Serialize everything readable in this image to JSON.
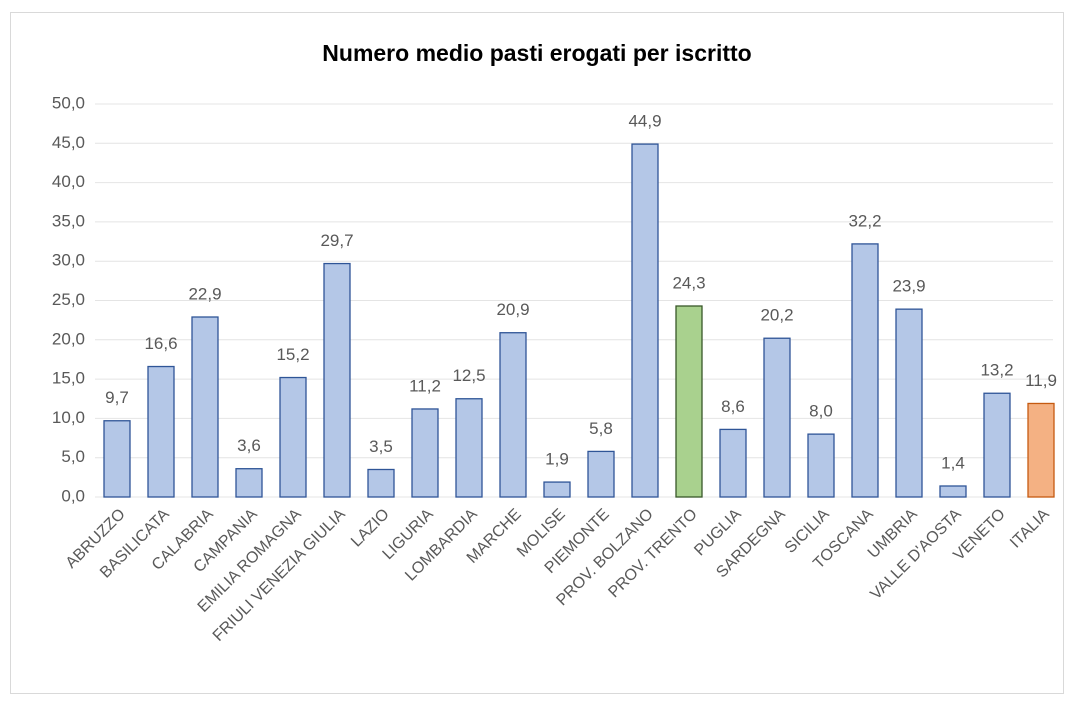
{
  "chart_data": {
    "type": "bar",
    "title": "Numero medio pasti erogati per iscritto",
    "categories": [
      "ABRUZZO",
      "BASILICATA",
      "CALABRIA",
      "CAMPANIA",
      "EMILIA ROMAGNA",
      "FRIULI VENEZIA GIULIA",
      "LAZIO",
      "LIGURIA",
      "LOMBARDIA",
      "MARCHE",
      "MOLISE",
      "PIEMONTE",
      "PROV. BOLZANO",
      "PROV. TRENTO",
      "PUGLIA",
      "SARDEGNA",
      "SICILIA",
      "TOSCANA",
      "UMBRIA",
      "VALLE D'AOSTA",
      "VENETO",
      "ITALIA"
    ],
    "values": [
      9.7,
      16.6,
      22.9,
      3.6,
      15.2,
      29.7,
      3.5,
      11.2,
      12.5,
      20.9,
      1.9,
      5.8,
      44.9,
      24.3,
      8.6,
      20.2,
      8.0,
      32.2,
      23.9,
      1.4,
      13.2,
      11.9
    ],
    "value_labels": [
      "9,7",
      "16,6",
      "22,9",
      "3,6",
      "15,2",
      "29,7",
      "3,5",
      "11,2",
      "12,5",
      "20,9",
      "1,9",
      "5,8",
      "44,9",
      "24,3",
      "8,6",
      "20,2",
      "8,0",
      "32,2",
      "23,9",
      "1,4",
      "13,2",
      "11,9"
    ],
    "colors": [
      "#b4c7e7",
      "#b4c7e7",
      "#b4c7e7",
      "#b4c7e7",
      "#b4c7e7",
      "#b4c7e7",
      "#b4c7e7",
      "#b4c7e7",
      "#b4c7e7",
      "#b4c7e7",
      "#b4c7e7",
      "#b4c7e7",
      "#b4c7e7",
      "#a9d18e",
      "#b4c7e7",
      "#b4c7e7",
      "#b4c7e7",
      "#b4c7e7",
      "#b4c7e7",
      "#b4c7e7",
      "#b4c7e7",
      "#f4b183"
    ],
    "edge_colors": [
      "#2f5597",
      "#2f5597",
      "#2f5597",
      "#2f5597",
      "#2f5597",
      "#2f5597",
      "#2f5597",
      "#2f5597",
      "#2f5597",
      "#2f5597",
      "#2f5597",
      "#2f5597",
      "#2f5597",
      "#38572a",
      "#2f5597",
      "#2f5597",
      "#2f5597",
      "#2f5597",
      "#2f5597",
      "#2f5597",
      "#2f5597",
      "#c55a11"
    ],
    "ylim": [
      0,
      50
    ],
    "yticks": [
      {
        "value": 0,
        "label": "0,0"
      },
      {
        "value": 5,
        "label": "5,0"
      },
      {
        "value": 10,
        "label": "10,0"
      },
      {
        "value": 15,
        "label": "15,0"
      },
      {
        "value": 20,
        "label": "20,0"
      },
      {
        "value": 25,
        "label": "25,0"
      },
      {
        "value": 30,
        "label": "30,0"
      },
      {
        "value": 35,
        "label": "35,0"
      },
      {
        "value": 40,
        "label": "40,0"
      },
      {
        "value": 45,
        "label": "45,0"
      },
      {
        "value": 50,
        "label": "50,0"
      }
    ],
    "grid": true
  }
}
